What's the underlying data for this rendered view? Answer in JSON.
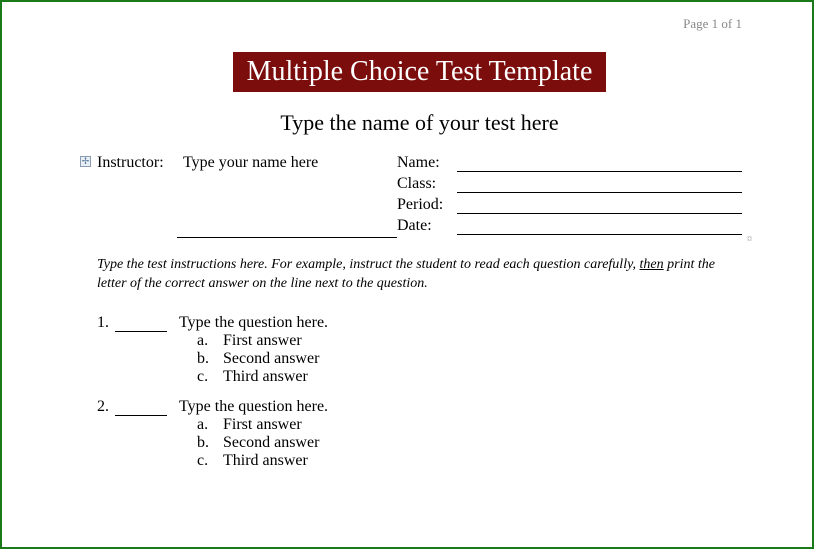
{
  "page_number": "Page 1 of 1",
  "title": "Multiple Choice Test Template",
  "title_bg": "#7b0d0d",
  "title_fg": "#ffffff",
  "test_name_placeholder": "Type the name of your test here",
  "info": {
    "instructor_label": "Instructor:",
    "instructor_value": "Type your name here",
    "fields": [
      {
        "label": "Name:"
      },
      {
        "label": "Class:"
      },
      {
        "label": "Period:"
      },
      {
        "label": "Date:"
      }
    ]
  },
  "instructions_part1": "Type the test instructions here.  For example, instruct the student to read each question carefully, ",
  "instructions_then": "then",
  "instructions_part2": " print the letter of the correct answer on the line next to the question.",
  "questions": [
    {
      "num": "1.",
      "text": "Type the question here.",
      "answers": [
        {
          "letter": "a.",
          "text": "First answer"
        },
        {
          "letter": "b.",
          "text": "Second answer"
        },
        {
          "letter": "c.",
          "text": "Third answer"
        }
      ]
    },
    {
      "num": "2.",
      "text": "Type the question here.",
      "answers": [
        {
          "letter": "a.",
          "text": "First answer"
        },
        {
          "letter": "b.",
          "text": "Second answer"
        },
        {
          "letter": "c.",
          "text": "Third answer"
        }
      ]
    }
  ]
}
